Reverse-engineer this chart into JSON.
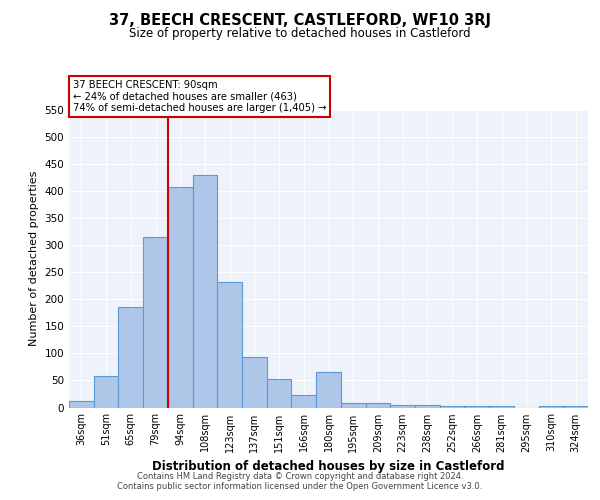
{
  "title": "37, BEECH CRESCENT, CASTLEFORD, WF10 3RJ",
  "subtitle": "Size of property relative to detached houses in Castleford",
  "xlabel": "Distribution of detached houses by size in Castleford",
  "ylabel": "Number of detached properties",
  "categories": [
    "36sqm",
    "51sqm",
    "65sqm",
    "79sqm",
    "94sqm",
    "108sqm",
    "123sqm",
    "137sqm",
    "151sqm",
    "166sqm",
    "180sqm",
    "195sqm",
    "209sqm",
    "223sqm",
    "238sqm",
    "252sqm",
    "266sqm",
    "281sqm",
    "295sqm",
    "310sqm",
    "324sqm"
  ],
  "values": [
    12,
    58,
    185,
    315,
    408,
    430,
    232,
    93,
    52,
    23,
    65,
    8,
    8,
    4,
    4,
    2,
    2,
    2,
    0,
    3,
    2
  ],
  "bar_color": "#aec6e8",
  "bar_edge_color": "#5b9bd5",
  "bar_width": 1.0,
  "vline_x_index": 4,
  "vline_color": "#cc0000",
  "annotation_title": "37 BEECH CRESCENT: 90sqm",
  "annotation_line1": "← 24% of detached houses are smaller (463)",
  "annotation_line2": "74% of semi-detached houses are larger (1,405) →",
  "annotation_box_color": "#cc0000",
  "ylim": [
    0,
    550
  ],
  "yticks": [
    0,
    50,
    100,
    150,
    200,
    250,
    300,
    350,
    400,
    450,
    500,
    550
  ],
  "background_color": "#eef2fa",
  "footer_line1": "Contains HM Land Registry data © Crown copyright and database right 2024.",
  "footer_line2": "Contains public sector information licensed under the Open Government Licence v3.0."
}
